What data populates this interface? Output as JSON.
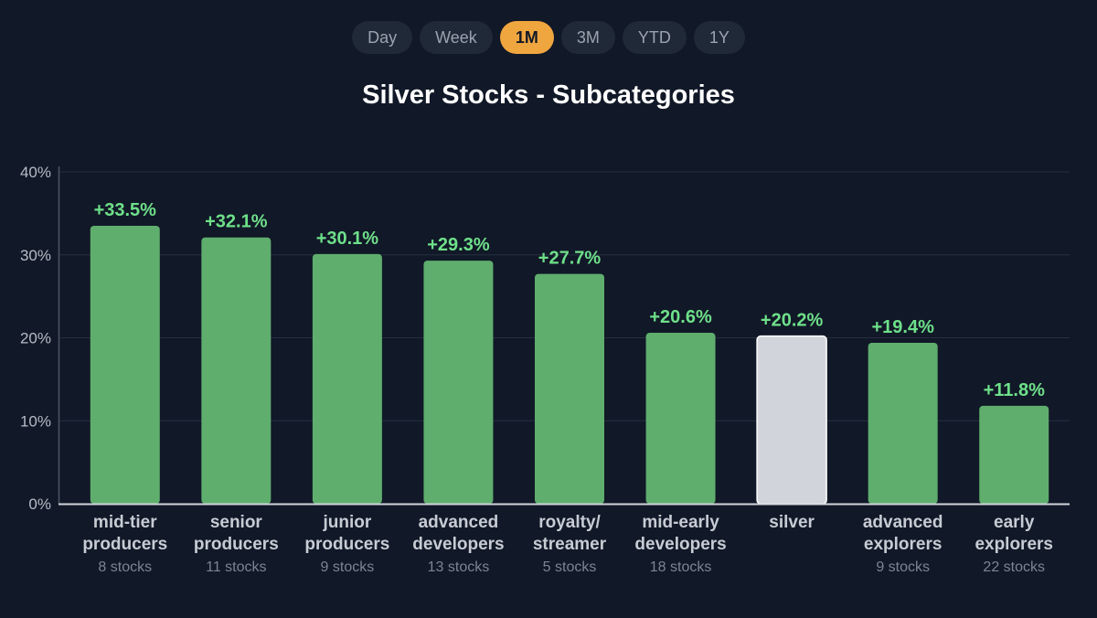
{
  "timeframes": {
    "options": [
      "Day",
      "Week",
      "1M",
      "3M",
      "YTD",
      "1Y"
    ],
    "selected": "1M"
  },
  "colors": {
    "background": "#111827",
    "bar": "#5fae6e",
    "highlight_bar": "#d1d5db",
    "value_label": "#6ee08a",
    "active_tab": "#f0a63f"
  },
  "chart_data": {
    "type": "bar",
    "title": "Silver Stocks - Subcategories",
    "xlabel": "",
    "ylabel": "",
    "ylim": [
      0,
      40
    ],
    "yticks": [
      0,
      10,
      20,
      30,
      40
    ],
    "ytick_labels": [
      "0%",
      "10%",
      "20%",
      "30%",
      "40%"
    ],
    "grid": true,
    "highlight_category": "silver",
    "bars": [
      {
        "label_lines": [
          "mid-tier",
          "producers"
        ],
        "count_label": "8 stocks",
        "value": 33.5,
        "value_label": "+33.5%"
      },
      {
        "label_lines": [
          "senior",
          "producers"
        ],
        "count_label": "11 stocks",
        "value": 32.1,
        "value_label": "+32.1%"
      },
      {
        "label_lines": [
          "junior",
          "producers"
        ],
        "count_label": "9 stocks",
        "value": 30.1,
        "value_label": "+30.1%"
      },
      {
        "label_lines": [
          "advanced",
          "developers"
        ],
        "count_label": "13 stocks",
        "value": 29.3,
        "value_label": "+29.3%"
      },
      {
        "label_lines": [
          "royalty/",
          "streamer"
        ],
        "count_label": "5 stocks",
        "value": 27.7,
        "value_label": "+27.7%"
      },
      {
        "label_lines": [
          "mid-early",
          "developers"
        ],
        "count_label": "18 stocks",
        "value": 20.6,
        "value_label": "+20.6%"
      },
      {
        "label_lines": [
          "silver"
        ],
        "count_label": "",
        "value": 20.2,
        "value_label": "+20.2%"
      },
      {
        "label_lines": [
          "advanced",
          "explorers"
        ],
        "count_label": "9 stocks",
        "value": 19.4,
        "value_label": "+19.4%"
      },
      {
        "label_lines": [
          "early",
          "explorers"
        ],
        "count_label": "22 stocks",
        "value": 11.8,
        "value_label": "+11.8%"
      }
    ]
  }
}
